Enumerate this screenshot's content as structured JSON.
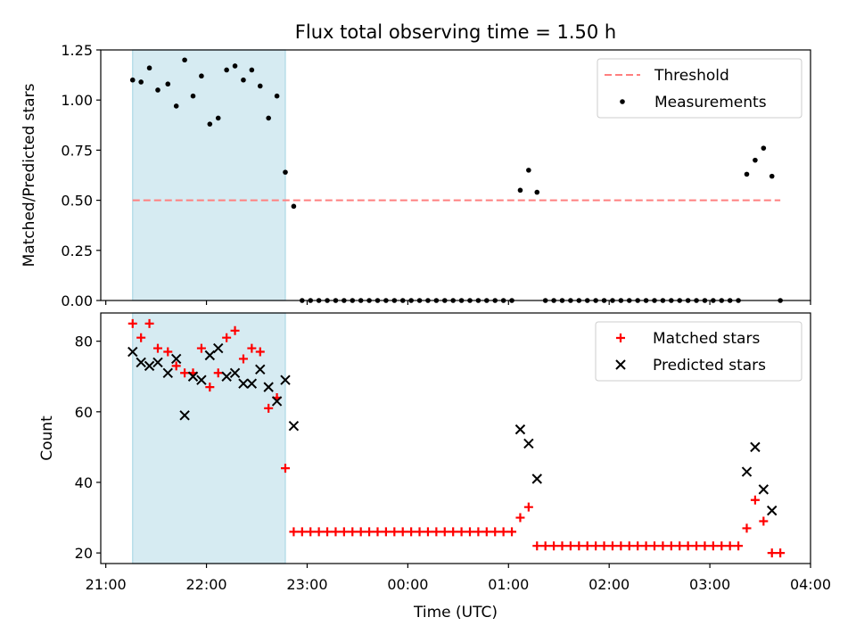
{
  "title": "Flux total observing time = 1.50 h",
  "xlabel": "Time (UTC)",
  "x_ticks": [
    "21:00",
    "22:00",
    "23:00",
    "00:00",
    "01:00",
    "02:00",
    "03:00",
    "04:00"
  ],
  "colors": {
    "shade": "#add8e6",
    "threshold": "#ff7f7f",
    "measure": "#000000",
    "matched": "#ff0000",
    "predicted": "#000000"
  },
  "chart_data": [
    {
      "type": "scatter",
      "ylabel": "Matched/Predicted stars",
      "ylim": [
        0,
        1.25
      ],
      "y_ticks": [
        "0.00",
        "0.25",
        "0.50",
        "0.75",
        "1.00",
        "1.25"
      ],
      "xlim_hours": [
        20.95,
        28.0
      ],
      "shaded_span": [
        "21:16",
        "22:47"
      ],
      "legend": [
        "Threshold",
        "Measurements"
      ],
      "legend_position": "top-right",
      "threshold": {
        "name": "Threshold",
        "y": 0.5,
        "x_start": "21:16",
        "x_end": "03:42",
        "style": "dashed"
      },
      "series": [
        {
          "name": "Measurements",
          "marker": "dot",
          "points": [
            [
              "21:16",
              1.1
            ],
            [
              "21:21",
              1.09
            ],
            [
              "21:26",
              1.16
            ],
            [
              "21:31",
              1.05
            ],
            [
              "21:37",
              1.08
            ],
            [
              "21:42",
              0.97
            ],
            [
              "21:47",
              1.2
            ],
            [
              "21:52",
              1.02
            ],
            [
              "21:57",
              1.12
            ],
            [
              "22:02",
              0.88
            ],
            [
              "22:07",
              0.91
            ],
            [
              "22:12",
              1.15
            ],
            [
              "22:17",
              1.17
            ],
            [
              "22:22",
              1.1
            ],
            [
              "22:27",
              1.15
            ],
            [
              "22:32",
              1.07
            ],
            [
              "22:37",
              0.91
            ],
            [
              "22:42",
              1.02
            ],
            [
              "22:47",
              0.64
            ],
            [
              "22:52",
              0.47
            ],
            [
              "22:57",
              0
            ],
            [
              "23:02",
              0
            ],
            [
              "23:07",
              0
            ],
            [
              "23:12",
              0
            ],
            [
              "23:17",
              0
            ],
            [
              "23:22",
              0
            ],
            [
              "23:27",
              0
            ],
            [
              "23:32",
              0
            ],
            [
              "23:37",
              0
            ],
            [
              "23:42",
              0
            ],
            [
              "23:47",
              0
            ],
            [
              "23:52",
              0
            ],
            [
              "23:57",
              0
            ],
            [
              "00:02",
              0
            ],
            [
              "00:07",
              0
            ],
            [
              "00:12",
              0
            ],
            [
              "00:17",
              0
            ],
            [
              "00:22",
              0
            ],
            [
              "00:27",
              0
            ],
            [
              "00:32",
              0
            ],
            [
              "00:37",
              0
            ],
            [
              "00:42",
              0
            ],
            [
              "00:47",
              0
            ],
            [
              "00:52",
              0
            ],
            [
              "00:57",
              0
            ],
            [
              "01:02",
              0
            ],
            [
              "01:07",
              0.55
            ],
            [
              "01:12",
              0.65
            ],
            [
              "01:17",
              0.54
            ],
            [
              "01:22",
              0
            ],
            [
              "01:27",
              0
            ],
            [
              "01:32",
              0
            ],
            [
              "01:37",
              0
            ],
            [
              "01:42",
              0
            ],
            [
              "01:47",
              0
            ],
            [
              "01:52",
              0
            ],
            [
              "01:57",
              0
            ],
            [
              "02:02",
              0
            ],
            [
              "02:07",
              0
            ],
            [
              "02:12",
              0
            ],
            [
              "02:17",
              0
            ],
            [
              "02:22",
              0
            ],
            [
              "02:27",
              0
            ],
            [
              "02:32",
              0
            ],
            [
              "02:37",
              0
            ],
            [
              "02:42",
              0
            ],
            [
              "02:47",
              0
            ],
            [
              "02:52",
              0
            ],
            [
              "02:57",
              0
            ],
            [
              "03:02",
              0
            ],
            [
              "03:07",
              0
            ],
            [
              "03:12",
              0
            ],
            [
              "03:17",
              0
            ],
            [
              "03:22",
              0.63
            ],
            [
              "03:27",
              0.7
            ],
            [
              "03:32",
              0.76
            ],
            [
              "03:37",
              0.62
            ],
            [
              "03:42",
              0
            ]
          ]
        }
      ]
    },
    {
      "type": "scatter",
      "ylabel": "Count",
      "ylim": [
        17,
        88
      ],
      "y_ticks": [
        20,
        40,
        60,
        80
      ],
      "xlim_hours": [
        20.95,
        28.0
      ],
      "shaded_span": [
        "21:16",
        "22:47"
      ],
      "legend": [
        "Matched stars",
        "Predicted stars"
      ],
      "legend_position": "top-right",
      "series": [
        {
          "name": "Matched stars",
          "marker": "plus",
          "points": [
            [
              "21:16",
              85
            ],
            [
              "21:21",
              81
            ],
            [
              "21:26",
              85
            ],
            [
              "21:31",
              78
            ],
            [
              "21:37",
              77
            ],
            [
              "21:42",
              73
            ],
            [
              "21:47",
              71
            ],
            [
              "21:52",
              71
            ],
            [
              "21:57",
              78
            ],
            [
              "22:02",
              67
            ],
            [
              "22:07",
              71
            ],
            [
              "22:12",
              81
            ],
            [
              "22:17",
              83
            ],
            [
              "22:22",
              75
            ],
            [
              "22:27",
              78
            ],
            [
              "22:32",
              77
            ],
            [
              "22:37",
              61
            ],
            [
              "22:42",
              64
            ],
            [
              "22:47",
              44
            ],
            [
              "22:52",
              26
            ],
            [
              "22:57",
              26
            ],
            [
              "23:02",
              26
            ],
            [
              "23:07",
              26
            ],
            [
              "23:12",
              26
            ],
            [
              "23:17",
              26
            ],
            [
              "23:22",
              26
            ],
            [
              "23:27",
              26
            ],
            [
              "23:32",
              26
            ],
            [
              "23:37",
              26
            ],
            [
              "23:42",
              26
            ],
            [
              "23:47",
              26
            ],
            [
              "23:52",
              26
            ],
            [
              "23:57",
              26
            ],
            [
              "00:02",
              26
            ],
            [
              "00:07",
              26
            ],
            [
              "00:12",
              26
            ],
            [
              "00:17",
              26
            ],
            [
              "00:22",
              26
            ],
            [
              "00:27",
              26
            ],
            [
              "00:32",
              26
            ],
            [
              "00:37",
              26
            ],
            [
              "00:42",
              26
            ],
            [
              "00:47",
              26
            ],
            [
              "00:52",
              26
            ],
            [
              "00:57",
              26
            ],
            [
              "01:02",
              26
            ],
            [
              "01:07",
              30
            ],
            [
              "01:12",
              33
            ],
            [
              "01:17",
              22
            ],
            [
              "01:22",
              22
            ],
            [
              "01:27",
              22
            ],
            [
              "01:32",
              22
            ],
            [
              "01:37",
              22
            ],
            [
              "01:42",
              22
            ],
            [
              "01:47",
              22
            ],
            [
              "01:52",
              22
            ],
            [
              "01:57",
              22
            ],
            [
              "02:02",
              22
            ],
            [
              "02:07",
              22
            ],
            [
              "02:12",
              22
            ],
            [
              "02:17",
              22
            ],
            [
              "02:22",
              22
            ],
            [
              "02:27",
              22
            ],
            [
              "02:32",
              22
            ],
            [
              "02:37",
              22
            ],
            [
              "02:42",
              22
            ],
            [
              "02:47",
              22
            ],
            [
              "02:52",
              22
            ],
            [
              "02:57",
              22
            ],
            [
              "03:02",
              22
            ],
            [
              "03:07",
              22
            ],
            [
              "03:12",
              22
            ],
            [
              "03:17",
              22
            ],
            [
              "03:22",
              27
            ],
            [
              "03:27",
              35
            ],
            [
              "03:32",
              29
            ],
            [
              "03:37",
              20
            ],
            [
              "03:42",
              20
            ]
          ]
        },
        {
          "name": "Predicted stars",
          "marker": "x",
          "points": [
            [
              "21:16",
              77
            ],
            [
              "21:21",
              74
            ],
            [
              "21:26",
              73
            ],
            [
              "21:31",
              74
            ],
            [
              "21:37",
              71
            ],
            [
              "21:42",
              75
            ],
            [
              "21:47",
              59
            ],
            [
              "21:52",
              70
            ],
            [
              "21:57",
              69
            ],
            [
              "22:02",
              76
            ],
            [
              "22:07",
              78
            ],
            [
              "22:12",
              70
            ],
            [
              "22:17",
              71
            ],
            [
              "22:22",
              68
            ],
            [
              "22:27",
              68
            ],
            [
              "22:32",
              72
            ],
            [
              "22:37",
              67
            ],
            [
              "22:42",
              63
            ],
            [
              "22:47",
              69
            ],
            [
              "22:52",
              56
            ],
            [
              "01:07",
              55
            ],
            [
              "01:12",
              51
            ],
            [
              "01:17",
              41
            ],
            [
              "03:22",
              43
            ],
            [
              "03:27",
              50
            ],
            [
              "03:32",
              38
            ],
            [
              "03:37",
              32
            ]
          ]
        }
      ]
    }
  ]
}
